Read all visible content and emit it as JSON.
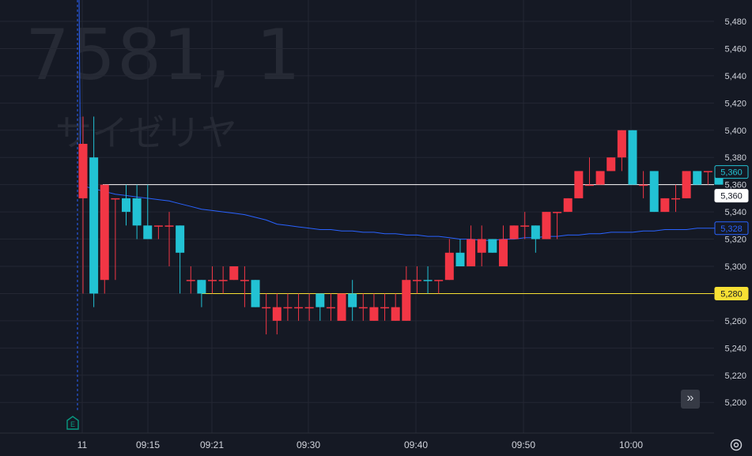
{
  "watermark": {
    "symbol": "7581, 1",
    "name": "サイゼリヤ"
  },
  "colors": {
    "background": "#151924",
    "grid": "#242733",
    "up": "#22c2d4",
    "down": "#f23645",
    "ma": "#2962ff",
    "white_line": "#ffffff",
    "yellow_line": "#f7e034",
    "text": "#d1d4dc"
  },
  "chart_data": {
    "type": "candlestick",
    "y_ticks": [
      "5,480",
      "5,460",
      "5,440",
      "5,420",
      "5,400",
      "5,380",
      "5,360",
      "5,340",
      "5,320",
      "5,300",
      "5,280",
      "5,260",
      "5,240",
      "5,220",
      "5,200"
    ],
    "x_ticks": [
      "11",
      "09:15",
      "09:21",
      "09:30",
      "09:40",
      "09:50",
      "10:00"
    ],
    "ylim": [
      5195,
      5490
    ],
    "candles": [
      {
        "o": 5350,
        "h": 5410,
        "l": 5280,
        "c": 5390,
        "d": "down"
      },
      {
        "o": 5380,
        "h": 5410,
        "l": 5270,
        "c": 5280,
        "d": "up"
      },
      {
        "o": 5360,
        "h": 5360,
        "l": 5280,
        "c": 5290,
        "d": "down"
      },
      {
        "o": 5350,
        "h": 5350,
        "l": 5290,
        "c": 5350,
        "d": "down"
      },
      {
        "o": 5350,
        "h": 5360,
        "l": 5330,
        "c": 5340,
        "d": "up"
      },
      {
        "o": 5350,
        "h": 5360,
        "l": 5320,
        "c": 5330,
        "d": "up"
      },
      {
        "o": 5330,
        "h": 5360,
        "l": 5320,
        "c": 5320,
        "d": "up"
      },
      {
        "o": 5330,
        "h": 5330,
        "l": 5320,
        "c": 5330,
        "d": "down"
      },
      {
        "o": 5330,
        "h": 5340,
        "l": 5300,
        "c": 5330,
        "d": "down"
      },
      {
        "o": 5330,
        "h": 5330,
        "l": 5280,
        "c": 5310,
        "d": "up"
      },
      {
        "o": 5290,
        "h": 5300,
        "l": 5280,
        "c": 5290,
        "d": "down"
      },
      {
        "o": 5290,
        "h": 5290,
        "l": 5270,
        "c": 5280,
        "d": "up"
      },
      {
        "o": 5290,
        "h": 5300,
        "l": 5280,
        "c": 5290,
        "d": "down"
      },
      {
        "o": 5290,
        "h": 5300,
        "l": 5280,
        "c": 5290,
        "d": "down"
      },
      {
        "o": 5290,
        "h": 5300,
        "l": 5290,
        "c": 5300,
        "d": "down"
      },
      {
        "o": 5290,
        "h": 5300,
        "l": 5270,
        "c": 5290,
        "d": "down"
      },
      {
        "o": 5290,
        "h": 5290,
        "l": 5270,
        "c": 5270,
        "d": "up"
      },
      {
        "o": 5270,
        "h": 5280,
        "l": 5250,
        "c": 5270,
        "d": "down"
      },
      {
        "o": 5260,
        "h": 5280,
        "l": 5250,
        "c": 5270,
        "d": "down"
      },
      {
        "o": 5270,
        "h": 5280,
        "l": 5260,
        "c": 5270,
        "d": "down"
      },
      {
        "o": 5270,
        "h": 5280,
        "l": 5260,
        "c": 5270,
        "d": "down"
      },
      {
        "o": 5270,
        "h": 5280,
        "l": 5260,
        "c": 5270,
        "d": "down"
      },
      {
        "o": 5280,
        "h": 5280,
        "l": 5260,
        "c": 5270,
        "d": "up"
      },
      {
        "o": 5270,
        "h": 5280,
        "l": 5260,
        "c": 5270,
        "d": "down"
      },
      {
        "o": 5260,
        "h": 5280,
        "l": 5260,
        "c": 5280,
        "d": "down"
      },
      {
        "o": 5280,
        "h": 5290,
        "l": 5260,
        "c": 5270,
        "d": "up"
      },
      {
        "o": 5270,
        "h": 5280,
        "l": 5260,
        "c": 5270,
        "d": "down"
      },
      {
        "o": 5260,
        "h": 5280,
        "l": 5260,
        "c": 5270,
        "d": "down"
      },
      {
        "o": 5270,
        "h": 5280,
        "l": 5260,
        "c": 5270,
        "d": "down"
      },
      {
        "o": 5260,
        "h": 5280,
        "l": 5260,
        "c": 5270,
        "d": "down"
      },
      {
        "o": 5260,
        "h": 5300,
        "l": 5260,
        "c": 5290,
        "d": "down"
      },
      {
        "o": 5290,
        "h": 5300,
        "l": 5280,
        "c": 5290,
        "d": "down"
      },
      {
        "o": 5290,
        "h": 5300,
        "l": 5280,
        "c": 5290,
        "d": "up"
      },
      {
        "o": 5290,
        "h": 5290,
        "l": 5280,
        "c": 5290,
        "d": "down"
      },
      {
        "o": 5290,
        "h": 5320,
        "l": 5290,
        "c": 5310,
        "d": "down"
      },
      {
        "o": 5310,
        "h": 5320,
        "l": 5300,
        "c": 5300,
        "d": "up"
      },
      {
        "o": 5300,
        "h": 5330,
        "l": 5300,
        "c": 5320,
        "d": "down"
      },
      {
        "o": 5310,
        "h": 5330,
        "l": 5300,
        "c": 5320,
        "d": "down"
      },
      {
        "o": 5320,
        "h": 5320,
        "l": 5310,
        "c": 5310,
        "d": "up"
      },
      {
        "o": 5300,
        "h": 5330,
        "l": 5300,
        "c": 5320,
        "d": "down"
      },
      {
        "o": 5320,
        "h": 5330,
        "l": 5320,
        "c": 5330,
        "d": "down"
      },
      {
        "o": 5330,
        "h": 5340,
        "l": 5320,
        "c": 5330,
        "d": "down"
      },
      {
        "o": 5330,
        "h": 5330,
        "l": 5310,
        "c": 5320,
        "d": "up"
      },
      {
        "o": 5320,
        "h": 5340,
        "l": 5320,
        "c": 5340,
        "d": "down"
      },
      {
        "o": 5340,
        "h": 5340,
        "l": 5320,
        "c": 5340,
        "d": "down"
      },
      {
        "o": 5340,
        "h": 5350,
        "l": 5340,
        "c": 5350,
        "d": "down"
      },
      {
        "o": 5350,
        "h": 5370,
        "l": 5350,
        "c": 5370,
        "d": "down"
      },
      {
        "o": 5360,
        "h": 5380,
        "l": 5360,
        "c": 5360,
        "d": "down"
      },
      {
        "o": 5360,
        "h": 5370,
        "l": 5360,
        "c": 5370,
        "d": "down"
      },
      {
        "o": 5370,
        "h": 5380,
        "l": 5370,
        "c": 5380,
        "d": "down"
      },
      {
        "o": 5380,
        "h": 5400,
        "l": 5370,
        "c": 5400,
        "d": "down"
      },
      {
        "o": 5400,
        "h": 5400,
        "l": 5360,
        "c": 5360,
        "d": "up"
      },
      {
        "o": 5360,
        "h": 5370,
        "l": 5350,
        "c": 5360,
        "d": "down"
      },
      {
        "o": 5370,
        "h": 5370,
        "l": 5340,
        "c": 5340,
        "d": "up"
      },
      {
        "o": 5340,
        "h": 5350,
        "l": 5340,
        "c": 5350,
        "d": "down"
      },
      {
        "o": 5350,
        "h": 5360,
        "l": 5340,
        "c": 5350,
        "d": "down"
      },
      {
        "o": 5350,
        "h": 5370,
        "l": 5350,
        "c": 5370,
        "d": "down"
      },
      {
        "o": 5370,
        "h": 5370,
        "l": 5360,
        "c": 5360,
        "d": "up"
      },
      {
        "o": 5370,
        "h": 5370,
        "l": 5360,
        "c": 5370,
        "d": "down"
      },
      {
        "o": 5370,
        "h": 5370,
        "l": 5360,
        "c": 5360,
        "d": "up"
      }
    ],
    "moving_average": [
      5359,
      5357,
      5355,
      5353,
      5352,
      5351,
      5350,
      5349,
      5348,
      5346,
      5344,
      5342,
      5341,
      5340,
      5339,
      5338,
      5336,
      5334,
      5331,
      5330,
      5329,
      5328,
      5327,
      5327,
      5326,
      5326,
      5325,
      5325,
      5324,
      5324,
      5323,
      5323,
      5322,
      5322,
      5321,
      5320,
      5320,
      5319,
      5319,
      5320,
      5320,
      5321,
      5321,
      5322,
      5322,
      5323,
      5323,
      5324,
      5324,
      5325,
      5325,
      5325,
      5326,
      5326,
      5327,
      5327,
      5327,
      5328,
      5328,
      5328
    ],
    "lines": [
      {
        "name": "white-level",
        "value": 5360,
        "label": "5,360"
      },
      {
        "name": "yellow-level",
        "value": 5280,
        "label": "5,280"
      }
    ],
    "price_labels": [
      {
        "label": "5,360",
        "value": 5360,
        "kind": "last"
      },
      {
        "label": "5,360",
        "value": 5360,
        "kind": "white"
      },
      {
        "label": "5,328",
        "value": 5328,
        "kind": "ma"
      },
      {
        "label": "5,280",
        "value": 5280,
        "kind": "yellow"
      }
    ]
  },
  "ui": {
    "scroll_icon": "»",
    "earnings_marker": "E",
    "settings_icon": "settings-icon"
  }
}
